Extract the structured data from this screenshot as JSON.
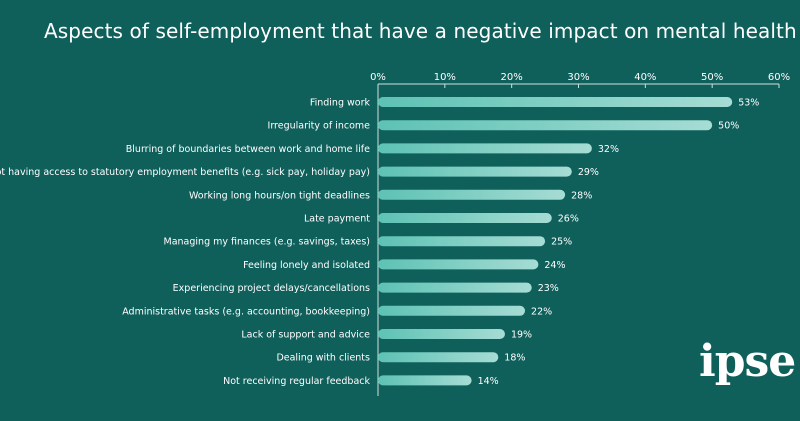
{
  "chart_data": {
    "type": "bar",
    "orientation": "horizontal",
    "title": "Aspects of self-employment that have a negative impact on mental health",
    "xlabel": "",
    "ylabel": "",
    "xlim": [
      0,
      60
    ],
    "ticks": [
      0,
      10,
      20,
      30,
      40,
      50,
      60
    ],
    "tick_suffix": "%",
    "categories": [
      "Finding work",
      "Irregularity of income",
      "Blurring of boundaries between work and home life",
      "Not having access to statutory employment benefits (e.g. sick pay, holiday pay)",
      "Working long hours/on tight deadlines",
      "Late payment",
      "Managing my finances (e.g. savings, taxes)",
      "Feeling lonely and isolated",
      "Experiencing project delays/cancellations",
      "Administrative tasks (e.g. accounting, bookkeeping)",
      "Lack of support and advice",
      "Dealing with clients",
      "Not receiving regular feedback"
    ],
    "values": [
      53,
      50,
      32,
      29,
      28,
      26,
      25,
      24,
      23,
      22,
      19,
      18,
      14
    ],
    "grid": false,
    "axis_position": "top"
  },
  "colors": {
    "background": "#0f5f5b",
    "bar_start": "#5dc2b4",
    "bar_end": "#a6dcd4",
    "text": "#ffffff"
  },
  "logo": {
    "text": "ipse"
  }
}
